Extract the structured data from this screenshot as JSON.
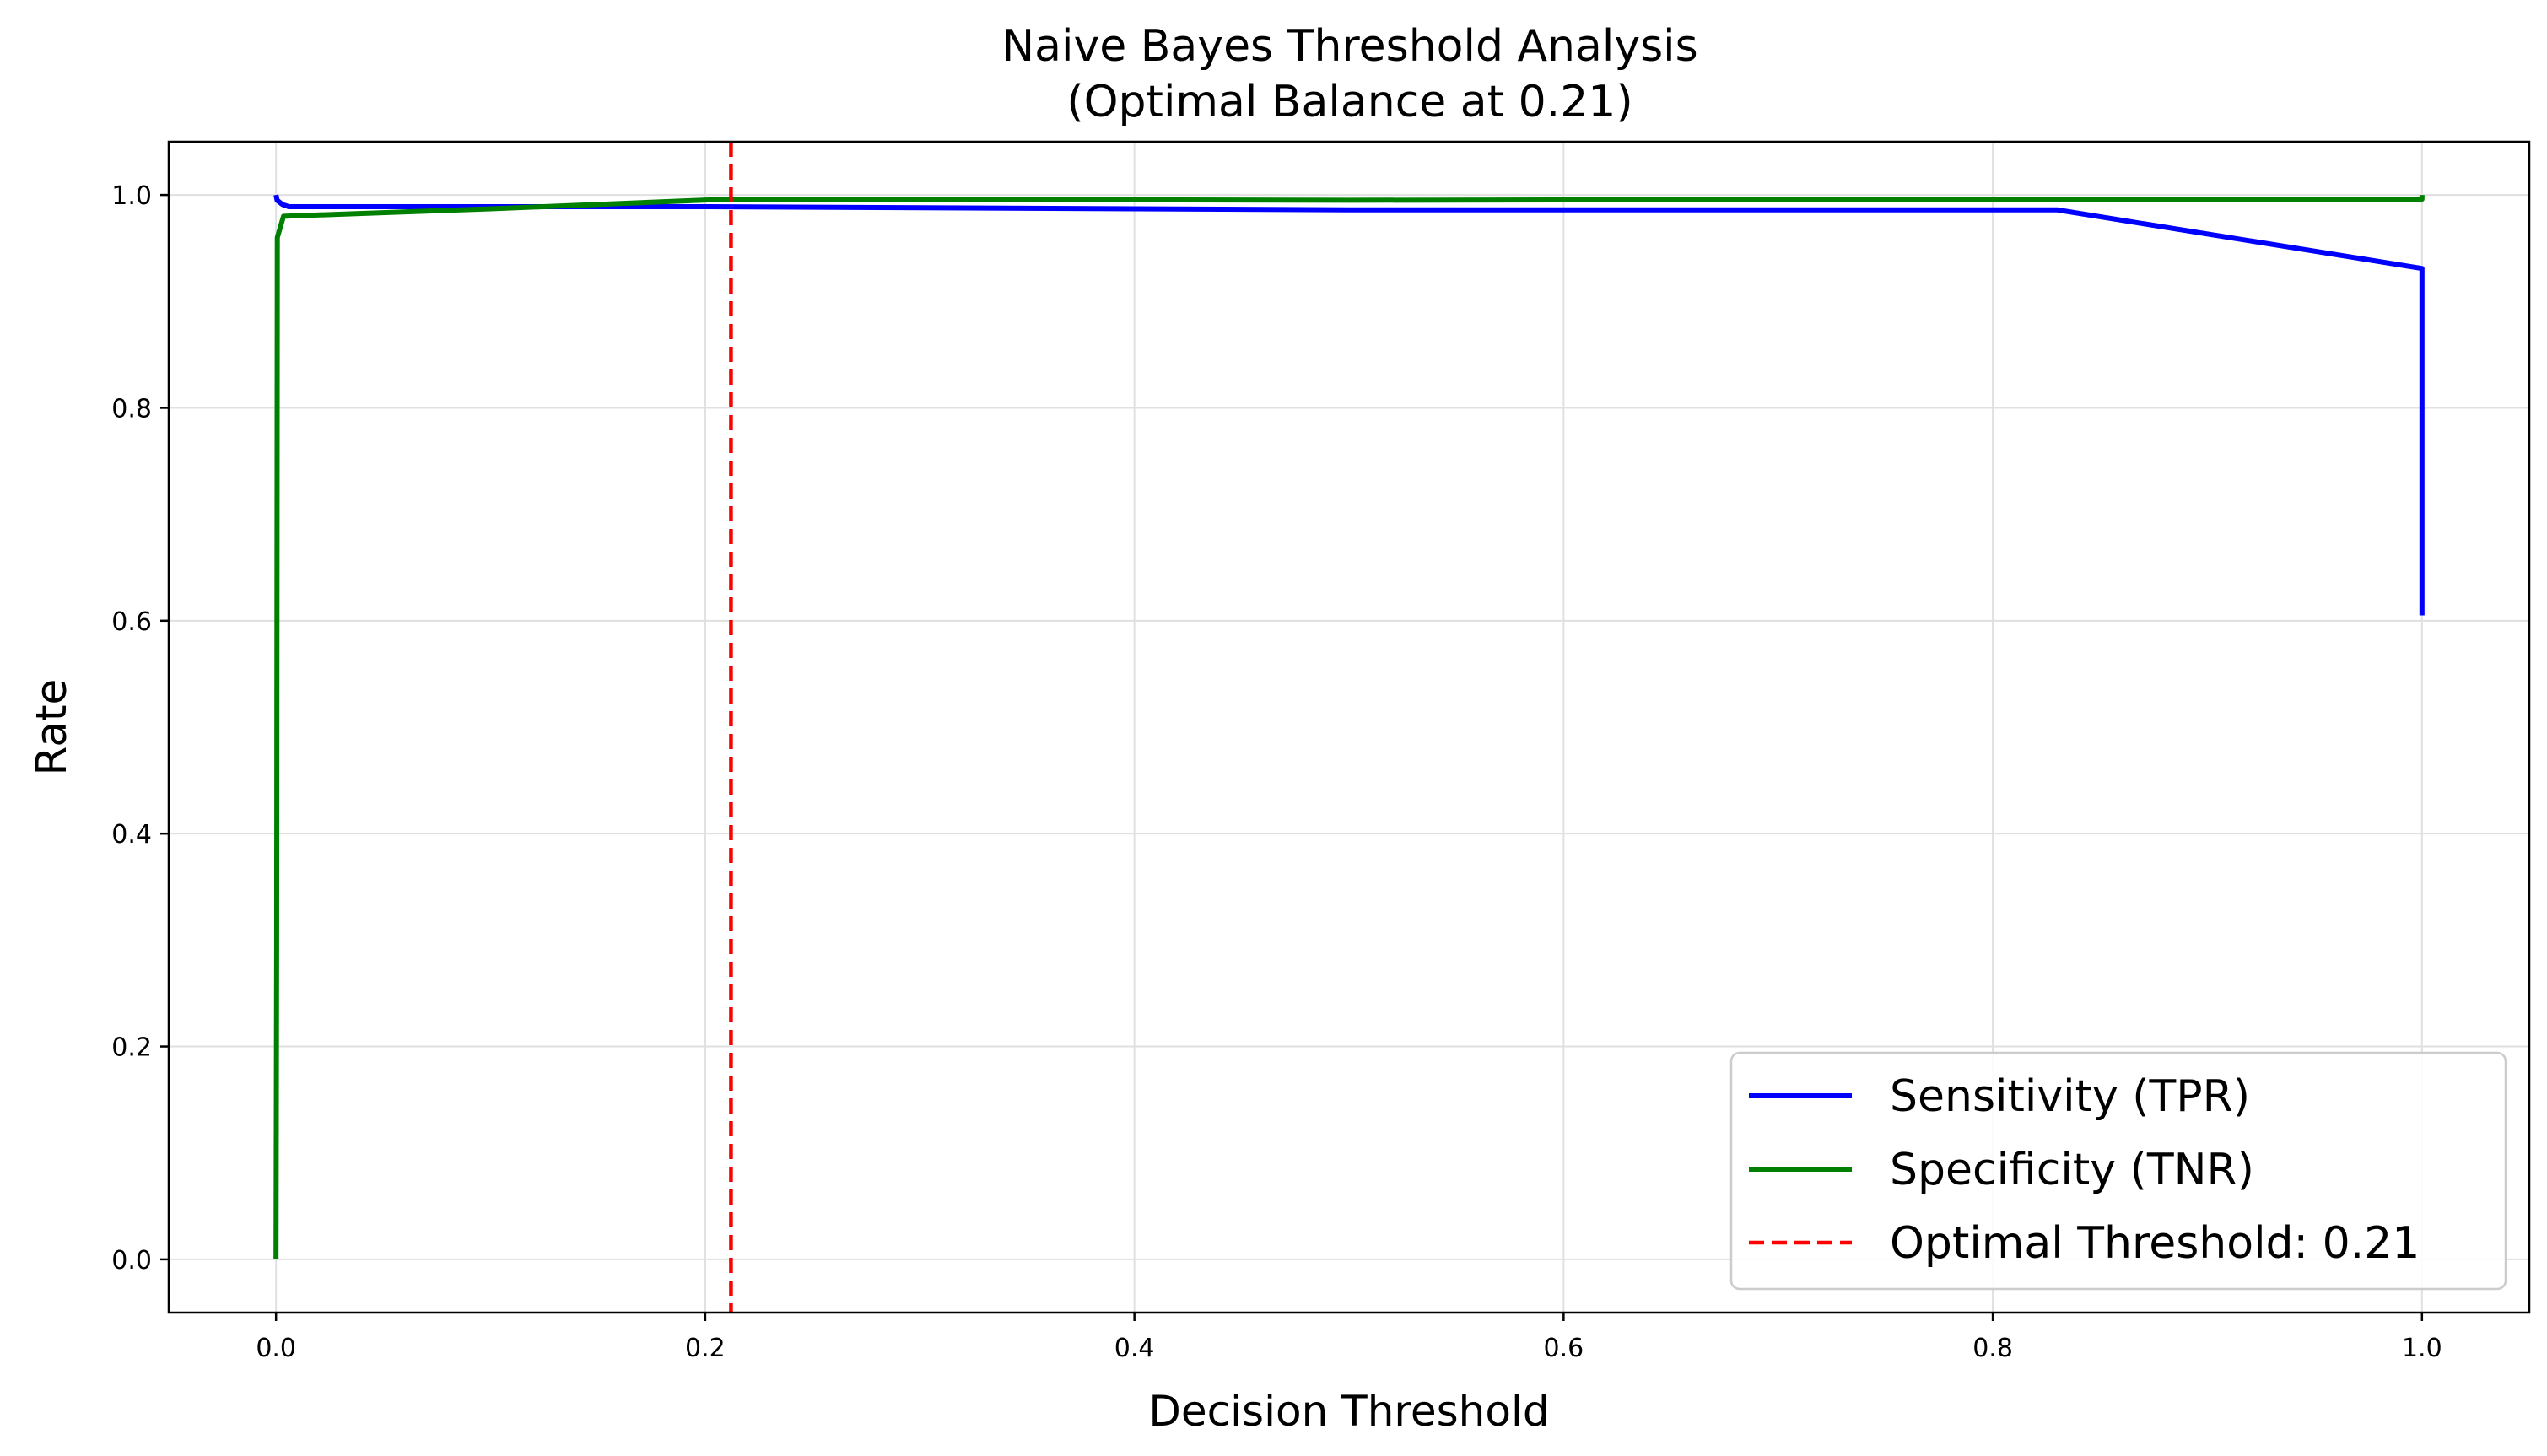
{
  "chart_data": {
    "type": "line",
    "title": "Naive Bayes Threshold Analysis",
    "subtitle": "(Optimal Balance at 0.21)",
    "xlabel": "Decision Threshold",
    "ylabel": "Rate",
    "xlim": [
      -0.05,
      1.05
    ],
    "ylim": [
      -0.05,
      1.05
    ],
    "xticks": [
      0.0,
      0.2,
      0.4,
      0.6,
      0.8,
      1.0
    ],
    "xtick_labels": [
      "0.0",
      "0.2",
      "0.4",
      "0.6",
      "0.8",
      "1.0"
    ],
    "yticks": [
      0.0,
      0.2,
      0.4,
      0.6,
      0.8,
      1.0
    ],
    "ytick_labels": [
      "0.0",
      "0.2",
      "0.4",
      "0.6",
      "0.8",
      "1.0"
    ],
    "grid": true,
    "legend_position": "lower-right",
    "series": [
      {
        "name": "Sensitivity (TPR)",
        "color": "#0000ff",
        "style": "solid",
        "points": [
          [
            0.0,
            1.0
          ],
          [
            0.0005,
            0.995
          ],
          [
            0.003,
            0.991
          ],
          [
            0.006,
            0.989
          ],
          [
            0.2,
            0.989
          ],
          [
            0.5,
            0.986
          ],
          [
            0.83,
            0.986
          ],
          [
            1.0,
            0.931
          ],
          [
            1.0,
            0.605
          ]
        ]
      },
      {
        "name": "Specificity (TNR)",
        "color": "#008000",
        "style": "solid",
        "points": [
          [
            0.0,
            0.0
          ],
          [
            0.0003,
            0.3
          ],
          [
            0.0006,
            0.96
          ],
          [
            0.0035,
            0.98
          ],
          [
            0.1,
            0.987
          ],
          [
            0.21,
            0.996
          ],
          [
            0.5,
            0.995
          ],
          [
            0.8,
            0.996
          ],
          [
            1.0,
            0.996
          ],
          [
            1.0,
            1.0
          ]
        ]
      }
    ],
    "vline": {
      "name": "Optimal Threshold: 0.21",
      "x": 0.212,
      "color": "#ff0000",
      "style": "dashed"
    }
  }
}
